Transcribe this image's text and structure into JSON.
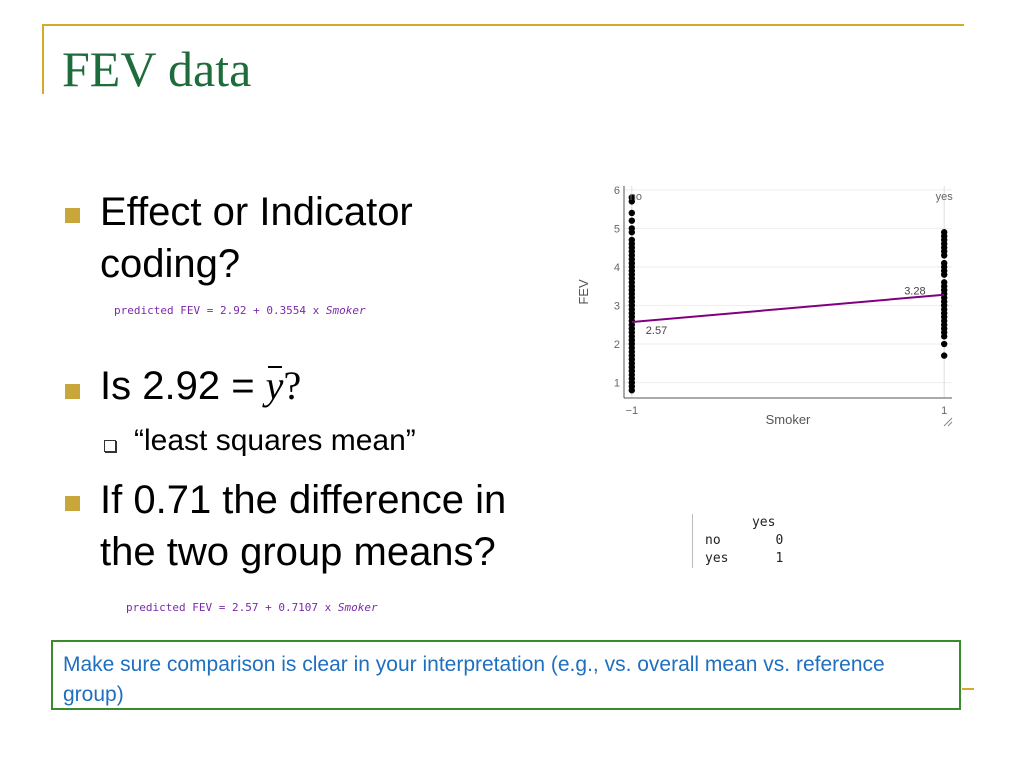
{
  "slide": {
    "title": "FEV data",
    "bullets": [
      {
        "line1": "Effect or Indicator",
        "line2": "coding?"
      },
      {
        "prefix": "Is 2.92 = ",
        "math": "y",
        "suffix": "?"
      },
      {
        "line1": "If 0.71 the difference in",
        "line2": "the two group means?"
      }
    ],
    "sub_bullet": "“least squares mean”",
    "equation_effect": {
      "prefix": "predicted FEV = 2.92 + 0.3554 x ",
      "var": "Smoker"
    },
    "equation_indicator": {
      "prefix": "predicted FEV = 2.57 + 0.7107 x ",
      "var": "Smoker"
    },
    "callout": "Make sure comparison is clear in your interpretation (e.g., vs. overall mean vs. reference group)"
  },
  "coding_table": {
    "header": "yes",
    "rows": [
      {
        "label": "no",
        "value": "0"
      },
      {
        "label": "yes",
        "value": "1"
      }
    ]
  },
  "chart_data": {
    "type": "scatter",
    "xlabel": "Smoker",
    "ylabel": "FEV",
    "x_ticks": [
      "−1",
      "1"
    ],
    "y_ticks": [
      "1",
      "2",
      "3",
      "4",
      "5",
      "6"
    ],
    "xlim": [
      -1.05,
      1.05
    ],
    "ylim": [
      0.6,
      6.1
    ],
    "group_labels": [
      "no",
      "yes"
    ],
    "groups": [
      {
        "x": -1,
        "values": [
          5.8,
          5.7,
          5.4,
          5.2,
          5.0,
          4.9,
          4.7,
          4.6,
          4.5,
          4.4,
          4.3,
          4.2,
          4.1,
          4.0,
          3.9,
          3.8,
          3.7,
          3.6,
          3.5,
          3.4,
          3.3,
          3.2,
          3.1,
          3.0,
          2.9,
          2.8,
          2.7,
          2.6,
          2.5,
          2.4,
          2.3,
          2.2,
          2.1,
          2.0,
          1.9,
          1.8,
          1.7,
          1.6,
          1.5,
          1.4,
          1.3,
          1.2,
          1.1,
          1.0,
          0.9,
          0.8
        ]
      },
      {
        "x": 1,
        "values": [
          4.9,
          4.8,
          4.7,
          4.6,
          4.5,
          4.4,
          4.3,
          4.1,
          4.0,
          3.9,
          3.8,
          3.6,
          3.5,
          3.4,
          3.3,
          3.2,
          3.1,
          3.0,
          2.9,
          2.8,
          2.7,
          2.6,
          2.5,
          2.4,
          2.3,
          2.2,
          2.0,
          1.7
        ]
      }
    ],
    "fit_line": {
      "x": [
        -1,
        1
      ],
      "y": [
        2.57,
        3.28
      ]
    },
    "annotations": [
      {
        "x": -1,
        "y": 2.57,
        "text": "2.57"
      },
      {
        "x": 1,
        "y": 3.28,
        "text": "3.28"
      }
    ],
    "colors": {
      "points": "#000000",
      "line": "#800080",
      "grid": "#eeeeee"
    }
  }
}
